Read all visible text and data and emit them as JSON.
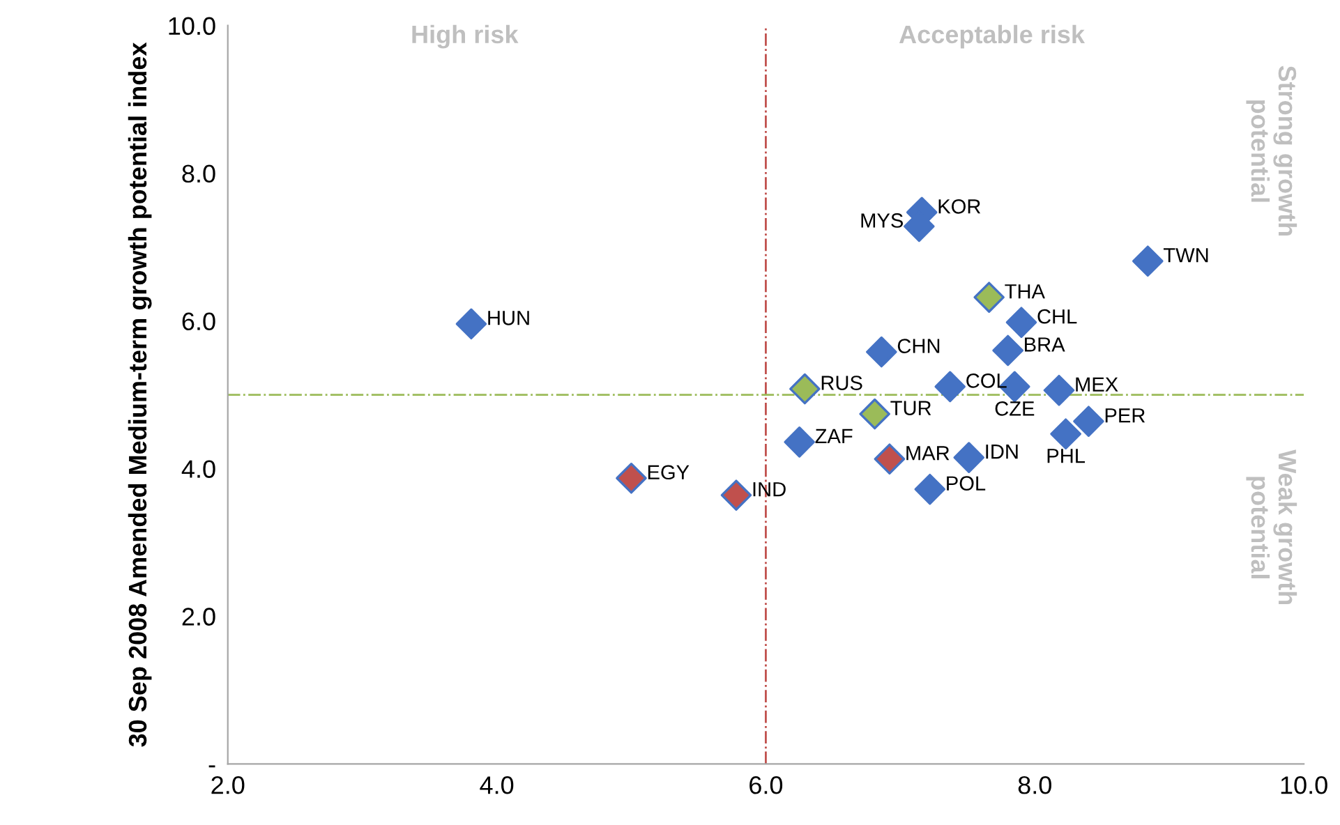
{
  "chart_data": {
    "type": "scatter",
    "ylabel": "30 Sep 2008 Amended Medium-term growth potential index",
    "xlim": [
      2.0,
      10.0
    ],
    "xticks": [
      {
        "value": 2,
        "label": "2.0"
      },
      {
        "value": 4,
        "label": "4.0"
      },
      {
        "value": 6,
        "label": "6.0"
      },
      {
        "value": 8,
        "label": "8.0"
      },
      {
        "value": 10,
        "label": "10.0"
      }
    ],
    "ylim": [
      0,
      10.0
    ],
    "yticks": [
      {
        "value": 0,
        "label": "-"
      },
      {
        "value": 2,
        "label": "2.0"
      },
      {
        "value": 4,
        "label": "4.0"
      },
      {
        "value": 6,
        "label": "6.0"
      },
      {
        "value": 8,
        "label": "8.0"
      },
      {
        "value": 10,
        "label": "10.0"
      }
    ],
    "grid": false,
    "legend": false,
    "marker": "diamond",
    "ref_lines": [
      {
        "axis": "x",
        "value": 6.0,
        "color": "#c0504d",
        "line_style": "dashdot"
      },
      {
        "axis": "y",
        "value": 5.0,
        "color": "#9bbb59",
        "line_style": "dashdot"
      }
    ],
    "annotations": [
      "High risk",
      "Acceptable risk",
      "Strong growth potential",
      "Weak growth potential"
    ],
    "series": [
      {
        "name": "HUN",
        "color": "#4472c4",
        "x": [
          3.81
        ],
        "values": [
          5.96
        ]
      },
      {
        "name": "EGY",
        "color": "#c0504d",
        "x": [
          5.0
        ],
        "values": [
          3.87
        ]
      },
      {
        "name": "IND",
        "color": "#c0504d",
        "x": [
          5.78
        ],
        "values": [
          3.64
        ]
      },
      {
        "name": "RUS",
        "color": "#9bbb59",
        "x": [
          6.29
        ],
        "values": [
          5.08
        ]
      },
      {
        "name": "ZAF",
        "color": "#4472c4",
        "x": [
          6.25
        ],
        "values": [
          4.36
        ]
      },
      {
        "name": "TUR",
        "color": "#9bbb59",
        "x": [
          6.81
        ],
        "values": [
          4.74
        ]
      },
      {
        "name": "CHN",
        "color": "#4472c4",
        "x": [
          6.86
        ],
        "values": [
          5.58
        ]
      },
      {
        "name": "MAR",
        "color": "#c0504d",
        "x": [
          6.92
        ],
        "values": [
          4.13
        ]
      },
      {
        "name": "POL",
        "color": "#4472c4",
        "x": [
          7.22
        ],
        "values": [
          3.72
        ]
      },
      {
        "name": "KOR",
        "color": "#4472c4",
        "x": [
          7.16
        ],
        "values": [
          7.47
        ]
      },
      {
        "name": "MYS",
        "color": "#4472c4",
        "x": [
          7.14
        ],
        "values": [
          7.28
        ]
      },
      {
        "name": "COL",
        "color": "#4472c4",
        "x": [
          7.37
        ],
        "values": [
          5.11
        ]
      },
      {
        "name": "THA",
        "color": "#9bbb59",
        "x": [
          7.66
        ],
        "values": [
          6.32
        ]
      },
      {
        "name": "IDN",
        "color": "#4472c4",
        "x": [
          7.51
        ],
        "values": [
          4.15
        ]
      },
      {
        "name": "BRA",
        "color": "#4472c4",
        "x": [
          7.8
        ],
        "values": [
          5.6
        ]
      },
      {
        "name": "CHL",
        "color": "#4472c4",
        "x": [
          7.9
        ],
        "values": [
          5.98
        ]
      },
      {
        "name": "CZE",
        "color": "#4472c4",
        "x": [
          7.85
        ],
        "values": [
          5.11
        ]
      },
      {
        "name": "MEX",
        "color": "#4472c4",
        "x": [
          8.18
        ],
        "values": [
          5.06
        ]
      },
      {
        "name": "PHL",
        "color": "#4472c4",
        "x": [
          8.23
        ],
        "values": [
          4.47
        ]
      },
      {
        "name": "PER",
        "color": "#4472c4",
        "x": [
          8.4
        ],
        "values": [
          4.64
        ]
      },
      {
        "name": "TWN",
        "color": "#4472c4",
        "x": [
          8.84
        ],
        "values": [
          6.81
        ]
      }
    ]
  }
}
